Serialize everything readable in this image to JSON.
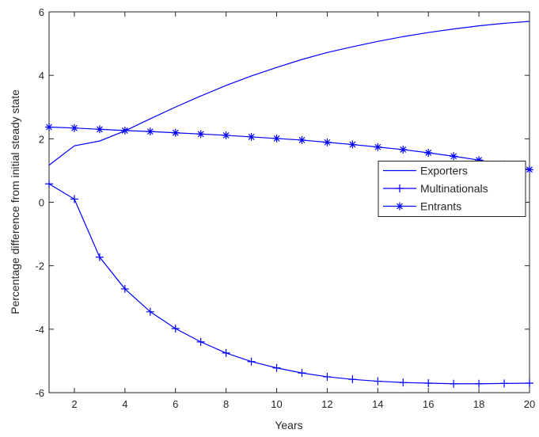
{
  "chart_data": {
    "type": "line",
    "x_label": "Years",
    "y_label": "Percentage difference from initial steady state",
    "x": [
      1,
      2,
      3,
      4,
      5,
      6,
      7,
      8,
      9,
      10,
      11,
      12,
      13,
      14,
      15,
      16,
      17,
      18,
      19,
      20
    ],
    "xlim": [
      1,
      20
    ],
    "xticks": [
      2,
      4,
      6,
      8,
      10,
      12,
      14,
      16,
      18,
      20
    ],
    "ylim": [
      -6,
      6
    ],
    "yticks": [
      -6,
      -4,
      -2,
      0,
      2,
      4,
      6
    ],
    "legend_position": "east",
    "series": [
      {
        "name": "Exporters",
        "color": "#0000ff",
        "values": [
          1.17,
          1.78,
          1.93,
          2.25,
          2.63,
          3.0,
          3.35,
          3.68,
          3.98,
          4.25,
          4.5,
          4.72,
          4.9,
          5.07,
          5.22,
          5.35,
          5.46,
          5.56,
          5.64,
          5.7
        ]
      },
      {
        "name": "Multinationals",
        "color": "#0000ff",
        "marker": "+",
        "values": [
          0.58,
          0.1,
          -1.73,
          -2.73,
          -3.45,
          -3.98,
          -4.4,
          -4.75,
          -5.02,
          -5.22,
          -5.38,
          -5.5,
          -5.58,
          -5.64,
          -5.68,
          -5.7,
          -5.72,
          -5.72,
          -5.71,
          -5.7
        ]
      },
      {
        "name": "Entrants",
        "color": "#0000ff",
        "marker": "*",
        "values": [
          2.37,
          2.34,
          2.3,
          2.26,
          2.23,
          2.19,
          2.15,
          2.11,
          2.06,
          2.01,
          1.96,
          1.89,
          1.82,
          1.74,
          1.66,
          1.56,
          1.45,
          1.33,
          1.19,
          1.03
        ]
      }
    ]
  }
}
